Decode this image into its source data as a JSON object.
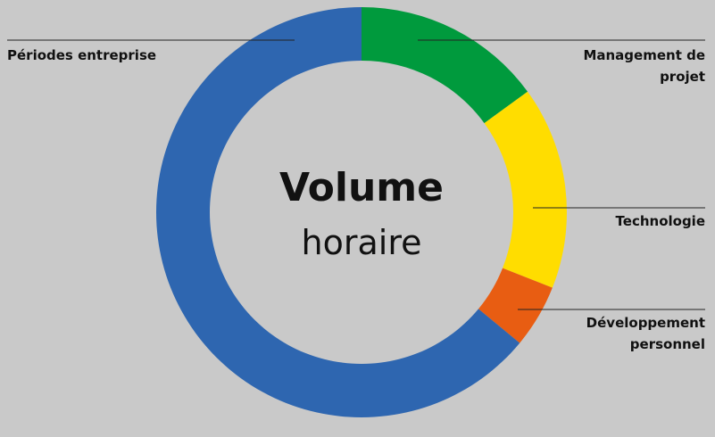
{
  "chart_data": {
    "type": "donut",
    "title": "Volume",
    "subtitle": "horaire",
    "categories": [
      "Management de projet",
      "Technologie",
      "Développement personnel",
      "Périodes entreprise"
    ],
    "values": [
      15,
      16,
      5,
      64
    ],
    "colors": [
      "#009a3d",
      "#ffdd00",
      "#e85d12",
      "#2e66b0"
    ]
  }
}
